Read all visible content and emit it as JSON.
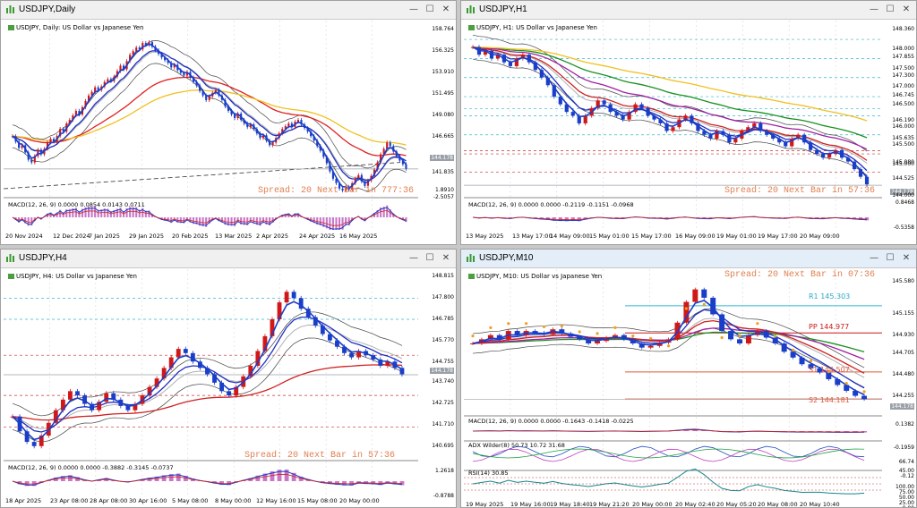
{
  "colors": {
    "bull": "#d01818",
    "bear": "#1a3ec8",
    "spread": "#e08050"
  },
  "windows": [
    {
      "id": "daily",
      "title": "USDJPY,Daily",
      "symbol_line": "USDJPY, Daily: US Dollar vs Japanese Yen",
      "spread": "Spread: 20  Next Bar in 777:36",
      "macd": "MACD(12, 26, 9) 0.0000 0.0854 0.0143 0.0711",
      "price_labels": [
        "158.764",
        "156.325",
        "153.910",
        "151.495",
        "149.080",
        "146.665",
        "144.178",
        "141.835",
        "1.8910",
        "-2.5057"
      ],
      "time_labels": [
        "20 Nov 2024",
        "12 Dec 2024",
        "7 Jan 2025",
        "29 Jan 2025",
        "20 Feb 2025",
        "13 Mar 2025",
        "2 Apr 2025",
        "24 Apr 2025",
        "16 May 2025"
      ],
      "close_series": [
        147.8,
        147.2,
        146.5,
        146.8,
        146.0,
        145.2,
        144.9,
        145.6,
        146.3,
        145.8,
        146.4,
        147.1,
        147.5,
        147.2,
        147.8,
        148.6,
        148.3,
        149.2,
        149.6,
        150.1,
        150.6,
        150.2,
        151.0,
        151.7,
        152.3,
        152.7,
        153.2,
        152.9,
        153.3,
        153.8,
        154.1,
        153.9,
        154.4,
        155.0,
        155.6,
        155.2,
        156.1,
        156.8,
        157.2,
        157.6,
        157.4,
        158.1,
        157.9,
        158.2,
        157.7,
        157.3,
        156.9,
        156.5,
        156.2,
        155.9,
        155.4,
        155.7,
        155.1,
        154.8,
        154.5,
        154.9,
        154.3,
        153.8,
        153.4,
        152.8,
        152.3,
        151.8,
        152.2,
        152.6,
        152.9,
        152.3,
        151.8,
        151.1,
        150.6,
        150.2,
        149.8,
        150.3,
        149.6,
        149.2,
        148.8,
        149.1,
        148.6,
        148.1,
        147.6,
        147.9,
        147.3,
        146.8,
        147.1,
        147.6,
        148.1,
        148.6,
        148.9,
        149.2,
        148.8,
        149.4,
        149.6,
        149.1,
        148.7,
        148.3,
        147.8,
        147.3,
        146.7,
        146.2,
        145.5,
        144.8,
        143.9,
        143.1,
        142.6,
        142.0,
        141.8,
        142.2,
        141.9,
        142.6,
        143.1,
        143.5,
        142.8,
        142.3,
        142.9,
        143.4,
        144.1,
        144.9,
        145.8,
        146.4,
        147.1,
        146.7,
        146.1,
        145.6,
        145.1,
        144.7,
        144.2
      ]
    },
    {
      "id": "h1",
      "title": "USDJPY,H1",
      "symbol_line": "USDJPY, H1: US Dollar vs Japanese Yen",
      "spread": "Spread: 20  Next Bar in 57:36",
      "macd": "MACD(12, 26, 9) 0.0000 0.0000 -0.2119 -0.1151 -0.0968",
      "price_labels": [
        "148.360",
        "148.000",
        "147.855",
        "147.500",
        "147.300",
        "147.000",
        "146.745",
        "146.500",
        "146.190",
        "146.000",
        "145.635",
        "145.500",
        "145.080",
        "145.000",
        "144.525",
        "144.178",
        "144.000",
        "0.8468",
        "-0.5358"
      ],
      "time_labels": [
        "13 May 2025",
        "13 May 17:00",
        "14 May 09:00",
        "15 May 01:00",
        "15 May 17:00",
        "16 May 09:00",
        "19 May 01:00",
        "19 May 17:00",
        "20 May 09:00"
      ],
      "close_series": [
        147.8,
        147.6,
        147.7,
        147.5,
        147.6,
        147.4,
        147.3,
        147.5,
        147.6,
        147.4,
        147.2,
        147.0,
        146.8,
        146.5,
        146.3,
        146.1,
        146.0,
        145.8,
        146.0,
        146.2,
        146.4,
        146.3,
        146.1,
        146.0,
        145.9,
        146.1,
        146.3,
        146.2,
        146.0,
        145.9,
        145.8,
        145.6,
        145.7,
        145.9,
        146.0,
        145.8,
        145.6,
        145.5,
        145.4,
        145.6,
        145.5,
        145.3,
        145.4,
        145.6,
        145.7,
        145.8,
        145.6,
        145.5,
        145.4,
        145.3,
        145.2,
        145.4,
        145.5,
        145.3,
        145.1,
        145.0,
        144.9,
        145.0,
        145.1,
        144.9,
        144.8,
        144.6,
        144.4,
        144.2
      ]
    },
    {
      "id": "h4",
      "title": "USDJPY,H4",
      "symbol_line": "USDJPY, H4: US Dollar vs Japanese Yen",
      "spread": "Spread: 20  Next Bar in 57:36",
      "macd": "MACD(12, 26, 9) 0.0000 0.0000 -0.3882 -0.3145 -0.0737",
      "price_labels": [
        "148.815",
        "147.800",
        "146.785",
        "145.770",
        "144.755",
        "144.178",
        "143.740",
        "142.725",
        "141.710",
        "140.695",
        "1.2618",
        "-0.8788"
      ],
      "time_labels": [
        "18 Apr 2025",
        "23 Apr 08:00",
        "28 Apr 08:00",
        "30 Apr 16:00",
        "5 May 08:00",
        "8 May 00:00",
        "12 May 16:00",
        "15 May 08:00",
        "20 May 00:00"
      ],
      "close_series": [
        142.2,
        141.5,
        141.0,
        140.8,
        141.3,
        141.9,
        142.5,
        143.0,
        143.4,
        143.2,
        142.8,
        142.5,
        142.9,
        143.3,
        143.0,
        142.7,
        142.5,
        142.8,
        143.2,
        143.6,
        144.0,
        144.5,
        145.0,
        145.4,
        145.2,
        144.8,
        144.5,
        144.2,
        143.8,
        143.4,
        143.2,
        143.6,
        144.1,
        144.6,
        145.3,
        146.0,
        146.8,
        147.6,
        148.1,
        147.8,
        147.3,
        146.9,
        146.5,
        146.1,
        145.8,
        145.5,
        145.2,
        145.0,
        145.3,
        145.1,
        144.9,
        144.6,
        144.8,
        144.5,
        144.2
      ]
    },
    {
      "id": "m10",
      "title": "USDJPY,M10",
      "symbol_line": "USDJPY, M10: US Dollar vs Japanese Yen",
      "spread": "Spread: 20  Next Bar in 07:36",
      "macd": "MACD(12, 26, 9) 0.0000 0.0000 -0.1643 -0.1418 -0.0225",
      "adx": "ADX Wilder(8) 50.73 10.72 31.68",
      "rsi": "RSI(14) 30.85",
      "pivots": {
        "r1": "R1 145.303",
        "pp": "PP 144.977",
        "s1": "S1 144.507",
        "s2": "S2 144.181"
      },
      "price_labels": [
        "145.580",
        "145.155",
        "144.930",
        "144.705",
        "144.480",
        "144.255",
        "144.178",
        "0.1382",
        "-0.1959",
        "66.74",
        "45.00",
        "-0.12",
        "100.00",
        "75.00",
        "50.00",
        "25.00",
        "0.00"
      ],
      "time_labels": [
        "19 May 2025",
        "19 May 16:00",
        "19 May 18:40",
        "19 May 21:20",
        "20 May 00:00",
        "20 May 02:40",
        "20 May 05:20",
        "20 May 08:00",
        "20 May 10:40"
      ],
      "close_series": [
        144.85,
        144.9,
        144.95,
        144.9,
        145.0,
        144.95,
        145.0,
        144.98,
        144.96,
        145.02,
        144.97,
        144.93,
        144.9,
        144.85,
        144.88,
        144.92,
        144.95,
        144.9,
        144.85,
        144.8,
        144.82,
        144.86,
        144.9,
        145.1,
        145.35,
        145.5,
        145.4,
        145.2,
        145.0,
        144.9,
        144.85,
        144.95,
        145.0,
        144.92,
        144.85,
        144.75,
        144.68,
        144.6,
        144.55,
        144.5,
        144.42,
        144.35,
        144.28,
        144.22,
        144.18
      ]
    }
  ]
}
